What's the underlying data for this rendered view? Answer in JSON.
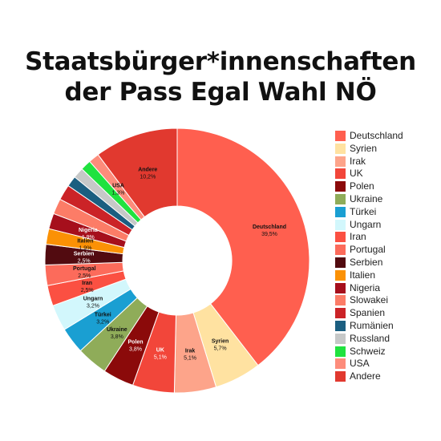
{
  "title": {
    "line1": "Staatsbürger*innenschaften",
    "line2": "der Pass Egal Wahl NÖ"
  },
  "chart_data": {
    "type": "pie",
    "variant": "donut",
    "legend_position": "right",
    "slices": [
      {
        "name": "Deutschland",
        "value": 39.5,
        "label": "39,5%",
        "color": "#ff5f4f",
        "text_color": "#111111"
      },
      {
        "name": "Syrien",
        "value": 5.7,
        "label": "5,7%",
        "color": "#ffe2a1",
        "text_color": "#111111"
      },
      {
        "name": "Irak",
        "value": 5.1,
        "label": "5,1%",
        "color": "#fda48a",
        "text_color": "#111111"
      },
      {
        "name": "UK",
        "value": 5.1,
        "label": "5,1%",
        "color": "#f2463a",
        "text_color": "#ffffff"
      },
      {
        "name": "Polen",
        "value": 3.8,
        "label": "3,8%",
        "color": "#8b0a0a",
        "text_color": "#ffffff"
      },
      {
        "name": "Ukraine",
        "value": 3.8,
        "label": "3,8%",
        "color": "#8fac59",
        "text_color": "#111111"
      },
      {
        "name": "Türkei",
        "value": 3.2,
        "label": "3,2%",
        "color": "#1a9fd2",
        "text_color": "#111111"
      },
      {
        "name": "Ungarn",
        "value": 3.2,
        "label": "3,2%",
        "color": "#d2f7fc",
        "text_color": "#111111"
      },
      {
        "name": "Iran",
        "value": 2.5,
        "label": "2,5%",
        "color": "#fb5042",
        "text_color": "#111111"
      },
      {
        "name": "Portugal",
        "value": 2.5,
        "label": "2,5%",
        "color": "#fc6b5b",
        "text_color": "#111111"
      },
      {
        "name": "Serbien",
        "value": 2.5,
        "label": "2,5%",
        "color": "#520b10",
        "text_color": "#ffffff"
      },
      {
        "name": "Italien",
        "value": 1.9,
        "label": "1,9%",
        "color": "#fb9105",
        "text_color": "#111111"
      },
      {
        "name": "Nigeria",
        "value": 1.9,
        "label": "1,9%",
        "color": "#a60f1c",
        "text_color": "#ffffff"
      },
      {
        "name": "Slowakei",
        "value": 1.9,
        "label": "",
        "color": "#fc7c67",
        "text_color": "#111111"
      },
      {
        "name": "Spanien",
        "value": 1.9,
        "label": "",
        "color": "#cb2327",
        "text_color": "#111111"
      },
      {
        "name": "Rumänien",
        "value": 1.3,
        "label": "",
        "color": "#1b5e80",
        "text_color": "#111111"
      },
      {
        "name": "Russland",
        "value": 1.3,
        "label": "",
        "color": "#c6c8c8",
        "text_color": "#111111"
      },
      {
        "name": "Schweiz",
        "value": 1.3,
        "label": "",
        "color": "#20e23f",
        "text_color": "#111111"
      },
      {
        "name": "USA",
        "value": 1.3,
        "label": "1,3%",
        "color": "#fd8c7b",
        "text_color": "#111111"
      },
      {
        "name": "Andere",
        "value": 10.2,
        "label": "10,2%",
        "color": "#e1392f",
        "text_color": "#111111"
      }
    ]
  }
}
